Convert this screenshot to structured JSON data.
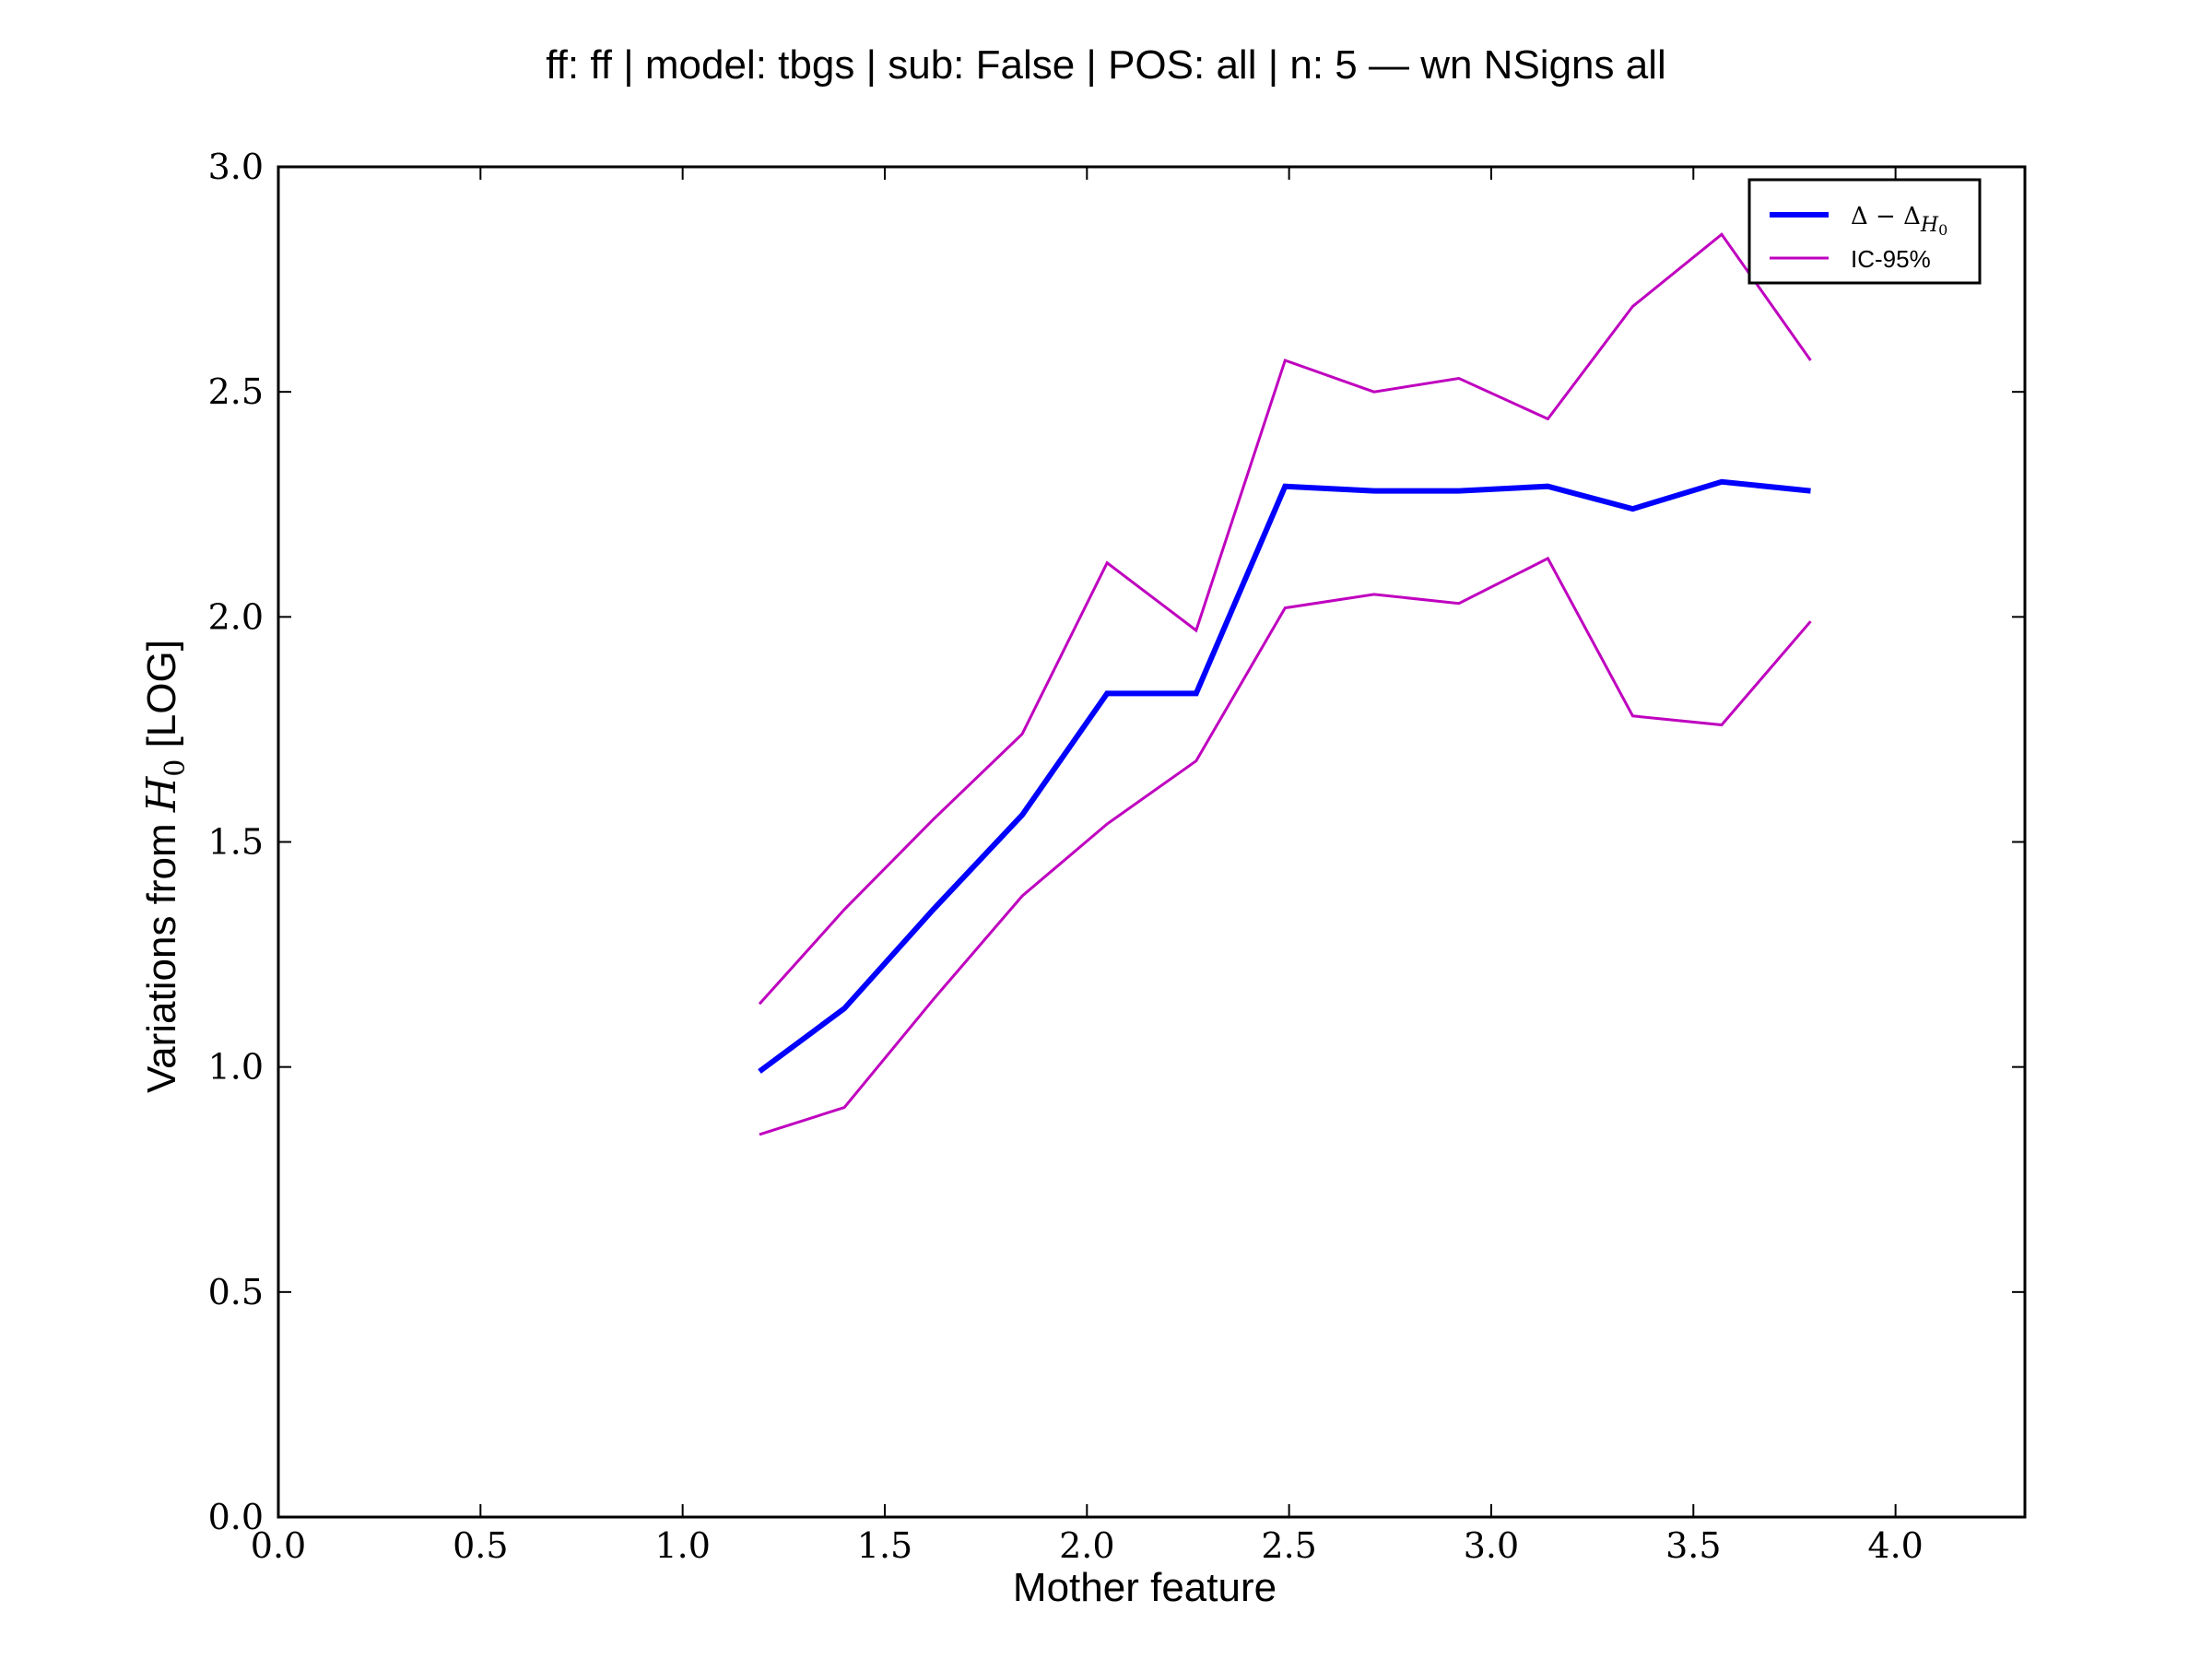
{
  "chart_data": {
    "type": "line",
    "title": "ff: ff | model: tbgs | sub: False | POS: all | n: 5 — wn NSigns all",
    "xlabel": "Mother feature",
    "ylabel": {
      "prefix": "Variations from ",
      "symbol": "H",
      "subscript": "0",
      "suffix": " [LOG]"
    },
    "xlim": [
      0.0,
      4.32
    ],
    "ylim": [
      0.0,
      3.0
    ],
    "xticks": [
      "0.0",
      "0.5",
      "1.0",
      "1.5",
      "2.0",
      "2.5",
      "3.0",
      "3.5",
      "4.0"
    ],
    "yticks": [
      "0.0",
      "0.5",
      "1.0",
      "1.5",
      "2.0",
      "2.5",
      "3.0"
    ],
    "grid": false,
    "legend_position": "top-right",
    "x": [
      1.19,
      1.4,
      1.62,
      1.84,
      2.05,
      2.27,
      2.49,
      2.71,
      2.92,
      3.14,
      3.35,
      3.57,
      3.79
    ],
    "series": [
      {
        "name": "Δ − Δ_H0",
        "legend": {
          "main": "Δ − Δ",
          "sub": "H",
          "subsub": "0"
        },
        "color": "#0000ff",
        "width": 6,
        "values": [
          0.99,
          1.13,
          1.35,
          1.56,
          1.83,
          1.83,
          2.29,
          2.28,
          2.28,
          2.29,
          2.24,
          2.3,
          2.28
        ]
      },
      {
        "name": "IC-95%",
        "legend": {
          "main": "IC-95%"
        },
        "color": "#bf00bf",
        "width": 3,
        "values": [
          1.14,
          1.35,
          1.55,
          1.74,
          2.12,
          1.97,
          2.57,
          2.5,
          2.53,
          2.44,
          2.69,
          2.85,
          2.57
        ]
      },
      {
        "name": "",
        "color": "#bf00bf",
        "width": 3,
        "values": [
          0.85,
          0.91,
          1.15,
          1.38,
          1.54,
          1.68,
          2.02,
          2.05,
          2.03,
          2.13,
          1.78,
          1.76,
          1.99
        ]
      }
    ]
  }
}
